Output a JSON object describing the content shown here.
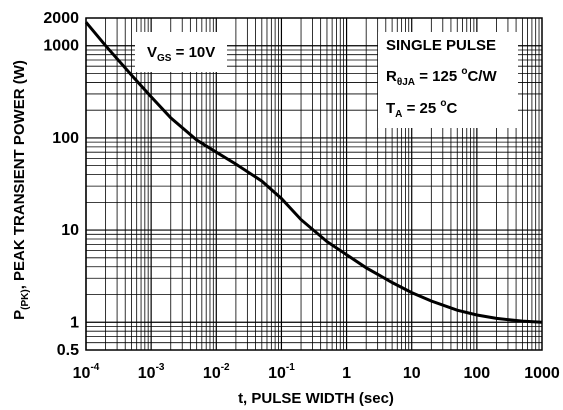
{
  "chart_data": {
    "type": "line",
    "x_scale": "log",
    "y_scale": "log",
    "xlim": [
      0.0001,
      1000
    ],
    "ylim": [
      0.5,
      2000
    ],
    "xlabel": "t, PULSE WIDTH (sec)",
    "ylabel": {
      "main": "P",
      "sub": "(PK)",
      "rest": ", PEAK TRANSIENT POWER (W)"
    },
    "grid": true,
    "x_ticks": [
      {
        "base": "10",
        "exp": "-4"
      },
      {
        "base": "10",
        "exp": "-3"
      },
      {
        "base": "10",
        "exp": "-2"
      },
      {
        "base": "10",
        "exp": "-1"
      },
      {
        "text": "1"
      },
      {
        "text": "10"
      },
      {
        "text": "100"
      },
      {
        "text": "1000"
      }
    ],
    "y_ticks": [
      "2000",
      "1000",
      "100",
      "10",
      "1",
      "0.5"
    ],
    "y_tick_values": [
      2000,
      1000,
      100,
      10,
      1,
      0.5
    ],
    "x_tick_values": [
      0.0001,
      0.001,
      0.01,
      0.1,
      1,
      10,
      100,
      1000
    ],
    "series": [
      {
        "x": [
          0.0001,
          0.0002,
          0.0005,
          0.001,
          0.002,
          0.005,
          0.01,
          0.02,
          0.05,
          0.1,
          0.2,
          0.5,
          1,
          2,
          5,
          10,
          20,
          50,
          100,
          200,
          500,
          1000
        ],
        "y": [
          1800,
          1000,
          480,
          280,
          165,
          95,
          70,
          52,
          34,
          22,
          13,
          7.5,
          5.4,
          3.9,
          2.7,
          2.1,
          1.7,
          1.35,
          1.2,
          1.1,
          1.03,
          1.0
        ]
      }
    ],
    "annotations": {
      "vgs": {
        "main": "V",
        "sub": "GS",
        "rest": " = 10V"
      },
      "single_pulse": "SINGLE PULSE",
      "rtheta": {
        "main": "R",
        "sub": "θJA",
        "rest": " = 125 ",
        "sup": "o",
        "unit": "C/W"
      },
      "ta": {
        "main": "T",
        "sub": "A",
        "rest": " = 25 ",
        "sup": "o",
        "unit": "C"
      }
    }
  }
}
